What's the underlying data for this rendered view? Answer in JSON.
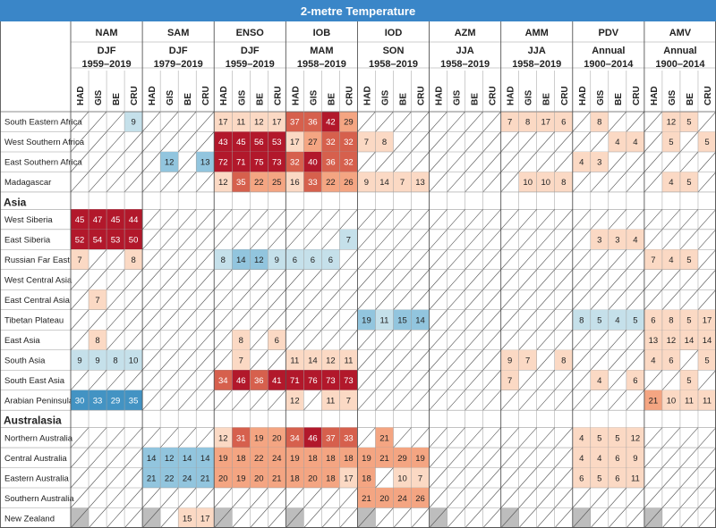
{
  "chart_data": {
    "type": "table",
    "title": "2-metre Temperature",
    "modes": [
      {
        "name": "NAM",
        "season": "DJF",
        "period": "1959–2019"
      },
      {
        "name": "SAM",
        "season": "DJF",
        "period": "1979–2019"
      },
      {
        "name": "ENSO",
        "season": "DJF",
        "period": "1959–2019"
      },
      {
        "name": "IOB",
        "season": "MAM",
        "period": "1958–2019"
      },
      {
        "name": "IOD",
        "season": "SON",
        "period": "1958–2019"
      },
      {
        "name": "AZM",
        "season": "JJA",
        "period": "1958–2019"
      },
      {
        "name": "AMM",
        "season": "JJA",
        "period": "1958–2019"
      },
      {
        "name": "PDV",
        "season": "Annual",
        "period": "1900–2014"
      },
      {
        "name": "AMV",
        "season": "Annual",
        "period": "1900–2014"
      }
    ],
    "datasets": [
      "HAD",
      "GIS",
      "BE",
      "CRU"
    ],
    "legend_note": "cell values: positive (orange/red) and negative (blue); diagonal = not significant; grey = not available",
    "colors": {
      "pos1": "#fbd9c4",
      "pos2": "#f4a582",
      "pos3": "#d6604d",
      "pos4": "#b2182b",
      "neg1": "#c5e0ea",
      "neg2": "#92c5de",
      "neg3": "#4393c3",
      "na": "#bdbdbd",
      "header": "#3a86c8",
      "line": "#9e9e9e"
    },
    "groups": [
      {
        "name": "",
        "rows": [
          {
            "region": "South Eastern Africa",
            "cells": [
              "X",
              "X",
              "X",
              "n:9",
              "X",
              "X",
              "X",
              "X",
              "p:17",
              "p:11",
              "p:12",
              "p:17",
              "p:37",
              "p:36",
              "p:42",
              "p:29",
              "X",
              "X",
              "X",
              "X",
              "X",
              "X",
              "X",
              "X",
              "p:7",
              "p:8",
              "p:17",
              "p:6",
              "X",
              "p:8",
              "X",
              "X",
              "X",
              "p:12",
              "p:5",
              "X"
            ]
          },
          {
            "region": "West Southern Africa",
            "cells": [
              "X",
              "X",
              "X",
              "X",
              "X",
              "X",
              "X",
              "X",
              "p:43",
              "p:45",
              "p:56",
              "p:53",
              "p:17",
              "p:27",
              "p:32",
              "p:32",
              "p:7",
              "p:8",
              "X",
              "X",
              "X",
              "X",
              "X",
              "X",
              "X",
              "X",
              "X",
              "X",
              "X",
              "X",
              "p:4",
              "p:4",
              "X",
              "p:5",
              "X",
              "p:5"
            ]
          },
          {
            "region": "East Southern Africa",
            "cells": [
              "X",
              "X",
              "X",
              "X",
              "X",
              "n:12",
              "X",
              "n:13",
              "p:72",
              "p:71",
              "p:75",
              "p:73",
              "p:32",
              "p:40",
              "p:36",
              "p:32",
              "X",
              "X",
              "X",
              "X",
              "X",
              "X",
              "X",
              "X",
              "X",
              "X",
              "X",
              "X",
              "p:4",
              "p:3",
              "X",
              "X",
              "X",
              "X",
              "X",
              "X"
            ]
          },
          {
            "region": "Madagascar",
            "cells": [
              "X",
              "X",
              "X",
              "X",
              "X",
              "X",
              "X",
              "X",
              "p:12",
              "p:35",
              "p:22",
              "p:25",
              "p:16",
              "p:33",
              "p:22",
              "p:26",
              "p:9",
              "p:14",
              "p:7",
              "p:13",
              "X",
              "X",
              "X",
              "X",
              "X",
              "p:10",
              "p:10",
              "p:8",
              "X",
              "X",
              "X",
              "X",
              "X",
              "p:4",
              "p:5",
              "X"
            ]
          }
        ]
      },
      {
        "name": "Asia",
        "rows": [
          {
            "region": "West Siberia",
            "cells": [
              "p:45",
              "p:47",
              "p:45",
              "p:44",
              "X",
              "X",
              "X",
              "X",
              "X",
              "X",
              "X",
              "X",
              "X",
              "X",
              "X",
              "X",
              "X",
              "X",
              "X",
              "X",
              "X",
              "X",
              "X",
              "X",
              "X",
              "X",
              "X",
              "X",
              "X",
              "X",
              "X",
              "X",
              "X",
              "X",
              "X",
              "X"
            ]
          },
          {
            "region": "East Siberia",
            "cells": [
              "p:52",
              "p:54",
              "p:53",
              "p:50",
              "X",
              "X",
              "X",
              "X",
              "X",
              "X",
              "X",
              "X",
              "X",
              "X",
              "X",
              "n:7",
              "X",
              "X",
              "X",
              "X",
              "X",
              "X",
              "X",
              "X",
              "X",
              "X",
              "X",
              "X",
              "X",
              "p:3",
              "p:3",
              "p:4",
              "X",
              "X",
              "X",
              "X"
            ]
          },
          {
            "region": "Russian Far East",
            "cells": [
              "p:7",
              "X",
              "X",
              "p:8",
              "X",
              "X",
              "X",
              "X",
              "n:8",
              "n:14",
              "n:12",
              "n:9",
              "n:6",
              "n:6",
              "n:6",
              "X",
              "X",
              "X",
              "X",
              "X",
              "X",
              "X",
              "X",
              "X",
              "X",
              "X",
              "X",
              "X",
              "X",
              "X",
              "X",
              "X",
              "p:7",
              "p:4",
              "p:5",
              "X"
            ]
          },
          {
            "region": "West Central Asia",
            "cells": [
              "X",
              "X",
              "X",
              "X",
              "X",
              "X",
              "X",
              "X",
              "X",
              "X",
              "X",
              "X",
              "X",
              "X",
              "X",
              "X",
              "X",
              "X",
              "X",
              "X",
              "X",
              "X",
              "X",
              "X",
              "X",
              "X",
              "X",
              "X",
              "X",
              "X",
              "X",
              "X",
              "X",
              "X",
              "X",
              "X"
            ]
          },
          {
            "region": "East Central Asia",
            "cells": [
              "X",
              "p:7",
              "X",
              "X",
              "X",
              "X",
              "X",
              "X",
              "X",
              "X",
              "X",
              "X",
              "X",
              "X",
              "X",
              "X",
              "X",
              "X",
              "X",
              "X",
              "X",
              "X",
              "X",
              "X",
              "X",
              "X",
              "X",
              "X",
              "X",
              "X",
              "X",
              "X",
              "X",
              "X",
              "X",
              "X"
            ]
          },
          {
            "region": "Tibetan Plateau",
            "cells": [
              "X",
              "X",
              "X",
              "X",
              "X",
              "X",
              "X",
              "X",
              "X",
              "X",
              "X",
              "X",
              "X",
              "X",
              "X",
              "X",
              "n:19",
              "n:11",
              "n:15",
              "n:14",
              "X",
              "X",
              "X",
              "X",
              "X",
              "X",
              "X",
              "X",
              "n:8",
              "n:5",
              "n:4",
              "n:5",
              "p:6",
              "p:8",
              "p:5",
              "p:17"
            ]
          },
          {
            "region": "East Asia",
            "cells": [
              "X",
              "p:8",
              "X",
              "X",
              "X",
              "X",
              "X",
              "X",
              "X",
              "p:8",
              "X",
              "p:6",
              "X",
              "X",
              "X",
              "X",
              "X",
              "X",
              "X",
              "X",
              "X",
              "X",
              "X",
              "X",
              "X",
              "X",
              "X",
              "X",
              "X",
              "X",
              "X",
              "X",
              "p:13",
              "p:12",
              "p:14",
              "p:14"
            ]
          },
          {
            "region": "South Asia",
            "cells": [
              "n:9",
              "n:9",
              "n:8",
              "n:10",
              "X",
              "X",
              "X",
              "X",
              "X",
              "p:7",
              "X",
              "X",
              "p:11",
              "p:14",
              "p:12",
              "p:11",
              "X",
              "X",
              "X",
              "X",
              "X",
              "X",
              "X",
              "X",
              "p:9",
              "p:7",
              "X",
              "p:8",
              "X",
              "X",
              "X",
              "X",
              "p:4",
              "p:6",
              "X",
              "p:5"
            ]
          },
          {
            "region": "South East Asia",
            "cells": [
              "X",
              "X",
              "X",
              "X",
              "X",
              "X",
              "X",
              "X",
              "p:34",
              "p:46",
              "p:36",
              "p:41",
              "p:71",
              "p:76",
              "p:73",
              "p:73",
              "X",
              "X",
              "X",
              "X",
              "X",
              "X",
              "X",
              "X",
              "p:7",
              "X",
              "X",
              "X",
              "X",
              "p:4",
              "X",
              "p:6",
              "X",
              "X",
              "p:5",
              "X"
            ]
          },
          {
            "region": "Arabian Peninsula",
            "cells": [
              "n:30",
              "n:33",
              "n:29",
              "n:35",
              "X",
              "X",
              "X",
              "X",
              "X",
              "X",
              "X",
              "X",
              "p:12",
              "X",
              "p:11",
              "p:7",
              "X",
              "X",
              "X",
              "X",
              "X",
              "X",
              "X",
              "X",
              "X",
              "X",
              "X",
              "X",
              "X",
              "X",
              "X",
              "X",
              "p:21",
              "p:10",
              "p:11",
              "p:11"
            ]
          }
        ]
      },
      {
        "name": "Australasia",
        "rows": [
          {
            "region": "Northern Australia",
            "cells": [
              "X",
              "X",
              "X",
              "X",
              "X",
              "X",
              "X",
              "X",
              "p:12",
              "p:31",
              "p:19",
              "p:20",
              "p:34",
              "p:46",
              "p:37",
              "p:33",
              "X",
              "p:21",
              "X",
              "X",
              "X",
              "X",
              "X",
              "X",
              "X",
              "X",
              "X",
              "X",
              "p:4",
              "p:5",
              "p:5",
              "p:12",
              "X",
              "X",
              "X",
              "X"
            ]
          },
          {
            "region": "Central Australia",
            "cells": [
              "X",
              "X",
              "X",
              "X",
              "n:14",
              "n:12",
              "n:14",
              "n:14",
              "p:19",
              "p:18",
              "p:22",
              "p:24",
              "p:19",
              "p:18",
              "p:18",
              "p:18",
              "p:19",
              "p:21",
              "p:29",
              "p:19",
              "X",
              "X",
              "X",
              "X",
              "X",
              "X",
              "X",
              "X",
              "p:4",
              "p:4",
              "p:6",
              "p:9",
              "X",
              "X",
              "X",
              "X"
            ]
          },
          {
            "region": "Eastern Australia",
            "cells": [
              "X",
              "X",
              "X",
              "X",
              "n:21",
              "n:22",
              "n:24",
              "n:21",
              "p:20",
              "p:19",
              "p:20",
              "p:21",
              "p:18",
              "p:20",
              "p:18",
              "p:17",
              "p:18",
              "X",
              "p:10",
              "p:7",
              "X",
              "X",
              "X",
              "X",
              "X",
              "X",
              "X",
              "X",
              "p:6",
              "p:5",
              "p:6",
              "p:11",
              "X",
              "X",
              "X",
              "X"
            ]
          },
          {
            "region": "Southern Australia",
            "cells": [
              "X",
              "X",
              "X",
              "X",
              "X",
              "X",
              "X",
              "X",
              "X",
              "X",
              "X",
              "X",
              "X",
              "X",
              "X",
              "X",
              "p:21",
              "p:20",
              "p:24",
              "p:26",
              "X",
              "X",
              "X",
              "X",
              "X",
              "X",
              "X",
              "X",
              "X",
              "X",
              "X",
              "X",
              "X",
              "X",
              "X",
              "X"
            ]
          },
          {
            "region": "New Zealand",
            "cells": [
              "G",
              "X",
              "X",
              "X",
              "G",
              "X",
              "p:15",
              "p:17",
              "G",
              "X",
              "X",
              "X",
              "G",
              "X",
              "X",
              "X",
              "G",
              "X",
              "X",
              "X",
              "G",
              "X",
              "X",
              "X",
              "G",
              "X",
              "X",
              "X",
              "G",
              "X",
              "X",
              "X",
              "G",
              "X",
              "X",
              "X"
            ]
          }
        ]
      }
    ]
  }
}
